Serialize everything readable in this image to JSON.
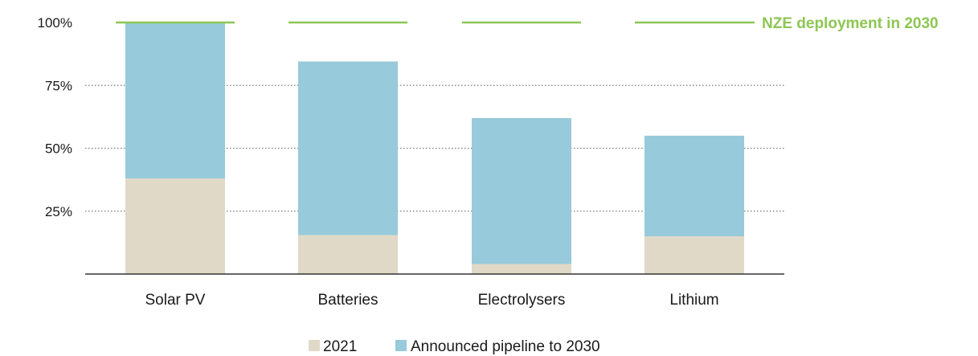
{
  "chart_data": {
    "type": "bar",
    "stacked": true,
    "categories": [
      "Solar PV",
      "Batteries",
      "Electrolysers",
      "Lithium"
    ],
    "series": [
      {
        "name": "2021",
        "values": [
          38,
          15.5,
          4,
          15
        ],
        "color": "#e0d9c7"
      },
      {
        "name": "Announced pipeline to 2030",
        "values": [
          62,
          69,
          58,
          40
        ],
        "color": "#97cadb"
      }
    ],
    "reference_line": {
      "label": "NZE deployment in 2030",
      "value": 100,
      "color": "#8dc653"
    },
    "y_axis": {
      "ylim": [
        0,
        100
      ],
      "ticks": [
        25,
        50,
        75,
        100
      ],
      "tick_labels": [
        "25%",
        "50%",
        "75%",
        "100%"
      ],
      "gridlines": "dotted"
    },
    "legend": {
      "position": "bottom-center"
    }
  }
}
